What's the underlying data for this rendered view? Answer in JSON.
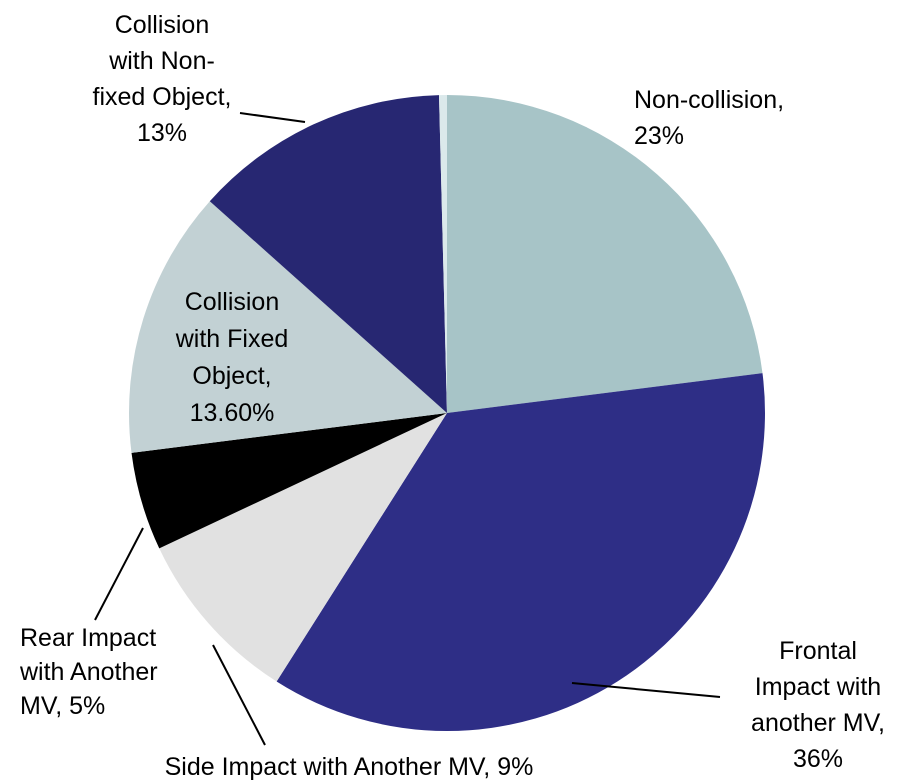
{
  "chart_data": {
    "type": "pie",
    "categories": [
      [
        "Non-collision,"
      ],
      [
        "Frontal",
        "Impact with",
        "another MV,"
      ],
      [
        "Side Impact with Another MV,"
      ],
      [
        "Rear Impact",
        "with Another",
        "MV,"
      ],
      [
        "Collision",
        "with Fixed",
        "Object,"
      ],
      [
        "Collision",
        "with Non-",
        "fixed Object,"
      ],
      null
    ],
    "values": [
      23,
      36,
      9,
      5,
      13.6,
      13,
      0.4
    ],
    "value_labels": [
      "23%",
      "36%",
      "9%",
      "5%",
      "13.60%",
      "13%",
      null
    ],
    "colors": [
      "#a7c4c7",
      "#2e2e86",
      "#e1e1e1",
      "#000000",
      "#c2d1d4",
      "#272772",
      "#dbe9eb"
    ]
  }
}
